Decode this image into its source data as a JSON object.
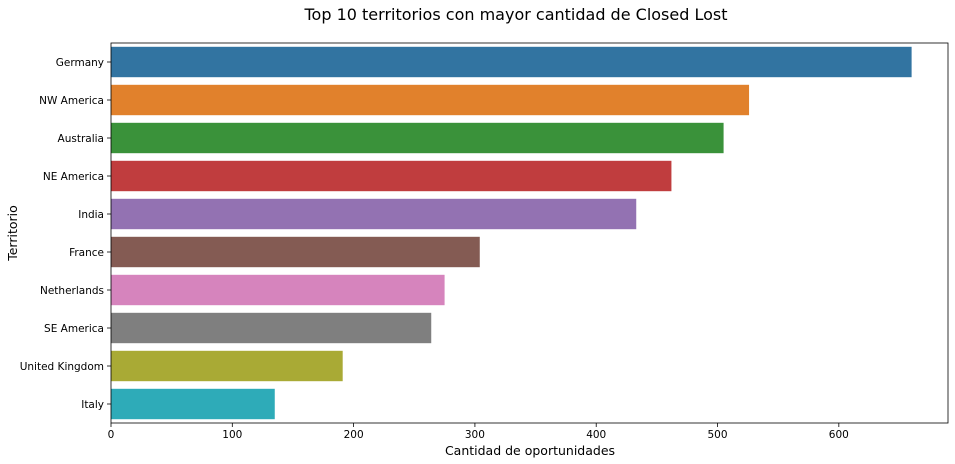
{
  "chart_data": {
    "type": "bar",
    "orientation": "horizontal",
    "title": "Top 10 territorios con mayor cantidad de Closed Lost",
    "xlabel": "Cantidad de oportunidades",
    "ylabel": "Territorio",
    "xlim": [
      0,
      690
    ],
    "xticks": [
      0,
      100,
      200,
      300,
      400,
      500,
      600
    ],
    "grid": false,
    "legend": "none",
    "categories": [
      "Germany",
      "NW America",
      "Australia",
      "NE America",
      "India",
      "France",
      "Netherlands",
      "SE America",
      "United Kingdom",
      "Italy"
    ],
    "values": [
      660,
      526,
      505,
      462,
      433,
      304,
      275,
      264,
      191,
      135
    ],
    "colors": [
      "#3274a1",
      "#e1812c",
      "#3a923a",
      "#c03d3e",
      "#9372b2",
      "#845b53",
      "#d684bd",
      "#7f7f7f",
      "#a9aa35",
      "#2eabb8"
    ]
  }
}
